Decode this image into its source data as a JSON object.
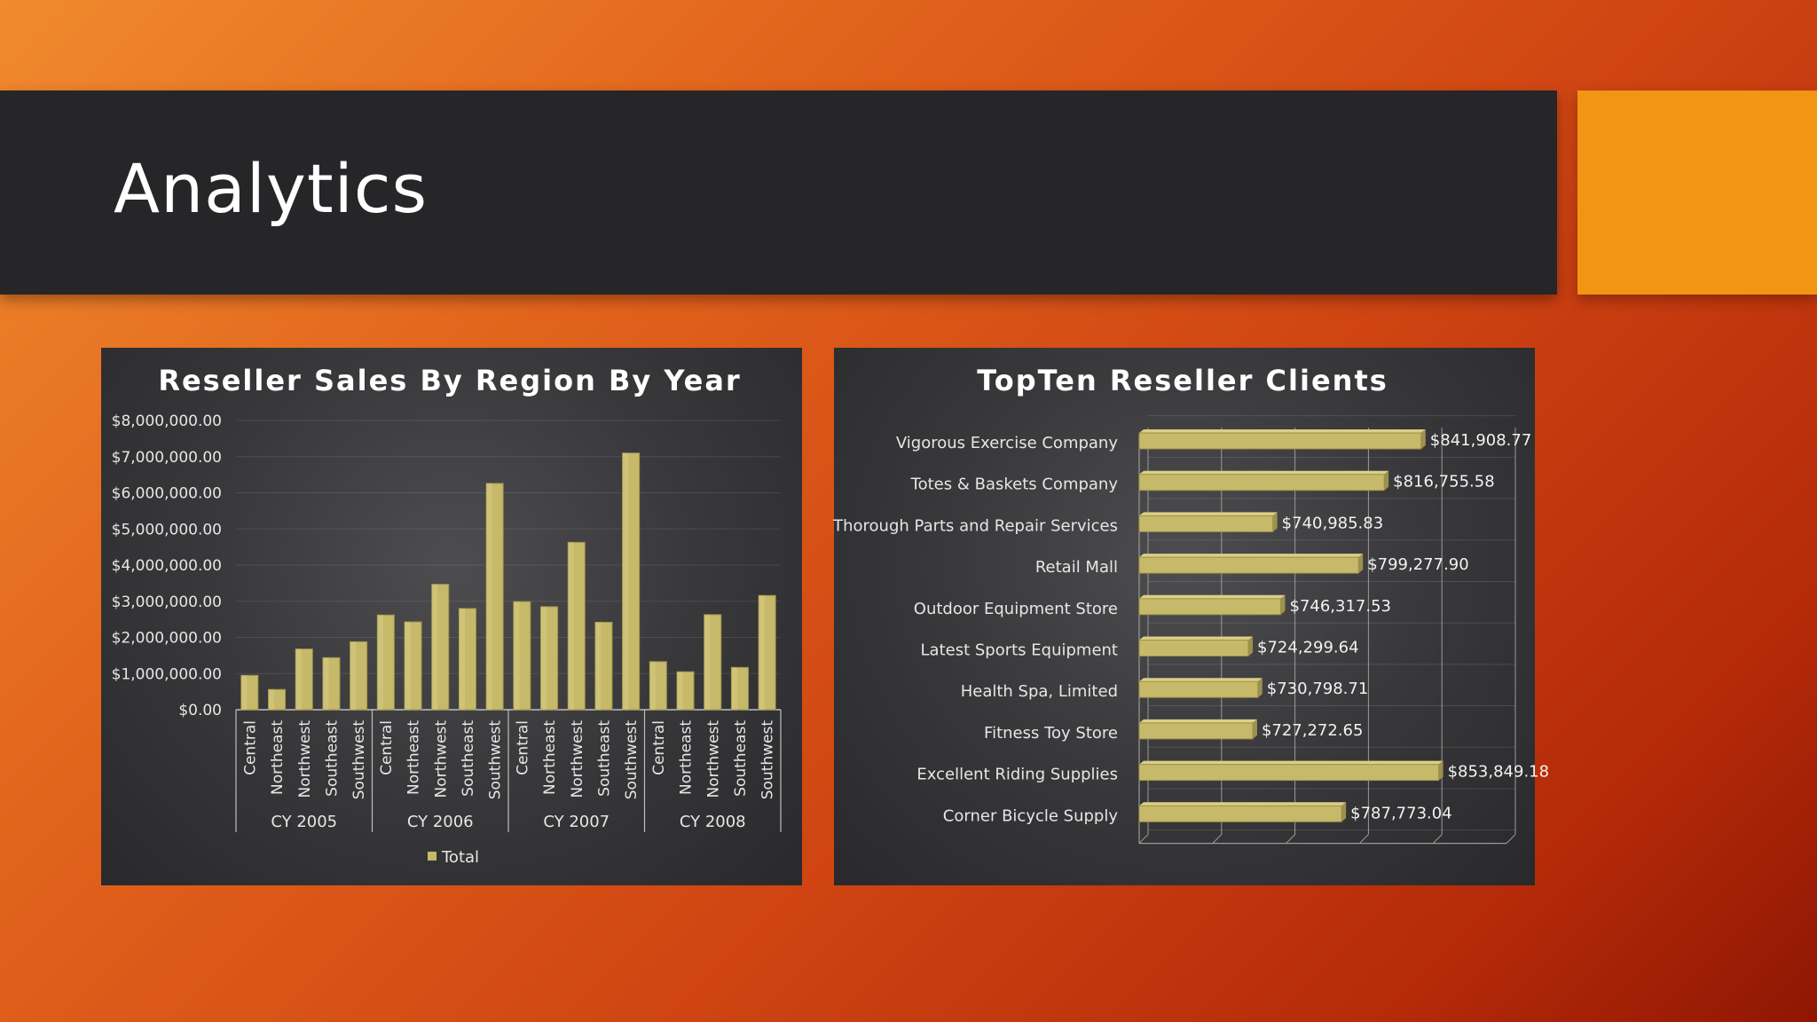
{
  "slide": {
    "title": "Analytics"
  },
  "colors": {
    "bar": "#c6b96a",
    "bar_light": "#dccf85",
    "bar_dark": "#9c914d",
    "panel": "#333335",
    "accent": "#f29414"
  },
  "chart_data": [
    {
      "type": "bar",
      "title": "Reseller Sales By Region By Year",
      "groups": [
        {
          "label": "CY 2005",
          "categories": [
            "Central",
            "Northeast",
            "Northwest",
            "Southeast",
            "Southwest"
          ],
          "values": [
            950000,
            560000,
            1680000,
            1440000,
            1880000
          ]
        },
        {
          "label": "CY 2006",
          "categories": [
            "Central",
            "Northeast",
            "Northwest",
            "Southeast",
            "Southwest"
          ],
          "values": [
            2620000,
            2430000,
            3470000,
            2800000,
            6260000
          ]
        },
        {
          "label": "CY 2007",
          "categories": [
            "Central",
            "Northeast",
            "Northwest",
            "Southeast",
            "Southwest"
          ],
          "values": [
            2990000,
            2850000,
            4630000,
            2420000,
            7100000
          ]
        },
        {
          "label": "CY 2008",
          "categories": [
            "Central",
            "Northeast",
            "Northwest",
            "Southeast",
            "Southwest"
          ],
          "values": [
            1330000,
            1050000,
            2630000,
            1170000,
            3160000
          ]
        }
      ],
      "series_name": "Total",
      "ylim": [
        0,
        8000000
      ],
      "yticks": [
        "$0.00",
        "$1,000,000.00",
        "$2,000,000.00",
        "$3,000,000.00",
        "$4,000,000.00",
        "$5,000,000.00",
        "$6,000,000.00",
        "$7,000,000.00",
        "$8,000,000.00"
      ],
      "legend": "bottom"
    },
    {
      "type": "bar",
      "orientation": "horizontal",
      "title": "TopTen Reseller Clients",
      "categories": [
        "Vigorous Exercise Company",
        "Totes & Baskets Company",
        "Thorough Parts and Repair Services",
        "Retail Mall",
        "Outdoor Equipment Store",
        "Latest Sports Equipment",
        "Health Spa, Limited",
        "Fitness Toy Store",
        "Excellent Riding Supplies",
        "Corner Bicycle Supply"
      ],
      "values": [
        841908.77,
        816755.58,
        740985.83,
        799277.9,
        746317.53,
        724299.64,
        730798.71,
        727272.65,
        853849.18,
        787773.04
      ],
      "labels": [
        "$841,908.77",
        "$816,755.58",
        "$740,985.83",
        "$799,277.90",
        "$746,317.53",
        "$724,299.64",
        "$730,798.71",
        "$727,272.65",
        "$853,849.18",
        "$787,773.04"
      ],
      "xlim": [
        650000,
        900000
      ]
    }
  ]
}
